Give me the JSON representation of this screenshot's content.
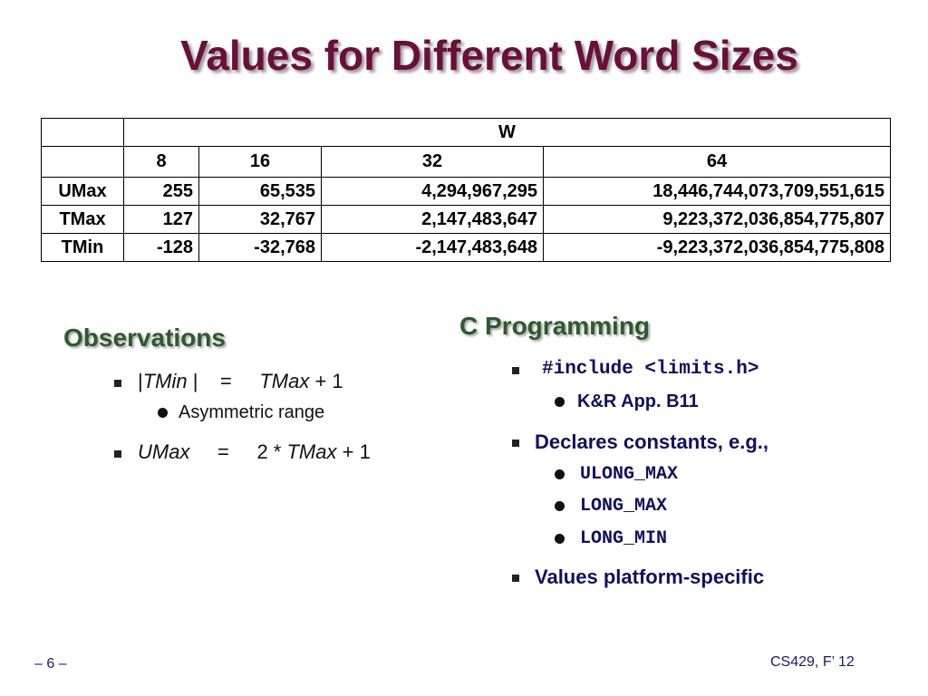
{
  "title": "Values for Different Word Sizes",
  "table": {
    "group_header": "W",
    "columns": [
      "8",
      "16",
      "32",
      "64"
    ],
    "rows": [
      [
        "UMax",
        "255",
        "65,535",
        "4,294,967,295",
        "18,446,744,073,709,551,615"
      ],
      [
        "TMax",
        "127",
        "32,767",
        "2,147,483,647",
        "9,223,372,036,854,775,807"
      ],
      [
        "TMin",
        "-128",
        "-32,768",
        "-2,147,483,648",
        "-9,223,372,036,854,775,808"
      ]
    ]
  },
  "observations": {
    "heading": "Observations",
    "items": [
      {
        "parts": [
          "|",
          "TMin",
          "|",
          "=",
          "TMax",
          "+ 1"
        ],
        "sub": [
          "Asymmetric range"
        ]
      },
      {
        "parts": [
          "UMax",
          "=",
          "2 *",
          "TMax",
          "+ 1"
        ]
      }
    ]
  },
  "c_programming": {
    "heading": "C Programming",
    "items": [
      {
        "text": "#include <limits.h>",
        "sub": [
          "K&R App. B11"
        ]
      },
      {
        "text": "Declares constants, e.g.,",
        "sub": [
          "ULONG_MAX",
          "LONG_MAX",
          "LONG_MIN"
        ]
      },
      {
        "text": "Values platform-specific"
      }
    ]
  },
  "footer": {
    "page": "– 6 –",
    "course": "CS429, F’ 12"
  }
}
